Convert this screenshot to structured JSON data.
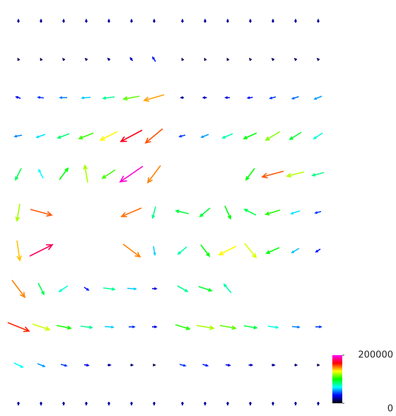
{
  "chart_data": {
    "type": "quiver",
    "colorbar": {
      "lim": [
        0,
        200000
      ],
      "ticks": [
        0,
        200000
      ],
      "colormap": [
        "#000000",
        "#0000ff",
        "#00ffff",
        "#00ff00",
        "#ffff00",
        "#ff0000",
        "#ff00ff"
      ]
    },
    "panels": [
      {
        "u": [
          [
            0,
            0,
            0,
            0,
            0,
            0,
            0
          ],
          [
            -5000,
            -5000,
            -8000,
            -10000,
            -12000,
            -15000,
            -20000
          ],
          [
            -30000,
            -40000,
            -50000,
            -60000,
            -80000,
            -110000,
            -140000
          ],
          [
            -50000,
            -60000,
            -80000,
            -100000,
            -120000,
            -150000,
            -120000
          ],
          [
            -40000,
            -30000,
            60000,
            -20000,
            -90000,
            -160000,
            -90000
          ],
          [
            -20000,
            150000,
            null,
            null,
            null,
            -140000,
            -20000
          ],
          [
            20000,
            160000,
            null,
            null,
            null,
            120000,
            10000
          ],
          [
            90000,
            40000,
            -60000,
            30000,
            80000,
            60000,
            30000
          ],
          [
            150000,
            120000,
            100000,
            80000,
            60000,
            40000,
            30000
          ],
          [
            60000,
            50000,
            40000,
            30000,
            20000,
            15000,
            10000
          ],
          [
            0,
            0,
            0,
            0,
            0,
            0,
            0
          ]
        ],
        "v": [
          [
            20000,
            20000,
            20000,
            20000,
            20000,
            20000,
            20000
          ],
          [
            10000,
            10000,
            10000,
            10000,
            12000,
            20000,
            30000
          ],
          [
            10000,
            5000,
            0,
            -5000,
            -10000,
            -20000,
            -40000
          ],
          [
            -10000,
            -20000,
            -30000,
            -40000,
            -60000,
            -80000,
            -100000
          ],
          [
            -80000,
            60000,
            80000,
            120000,
            -60000,
            -110000,
            -120000
          ],
          [
            -120000,
            -40000,
            null,
            null,
            null,
            -60000,
            -80000
          ],
          [
            -140000,
            80000,
            null,
            null,
            null,
            -90000,
            -60000
          ],
          [
            -120000,
            -80000,
            -40000,
            -20000,
            -10000,
            -5000,
            0
          ],
          [
            -60000,
            -40000,
            -20000,
            -10000,
            -5000,
            0,
            0
          ],
          [
            -30000,
            -20000,
            -10000,
            -5000,
            0,
            0,
            0
          ],
          [
            -20000,
            -20000,
            -20000,
            -20000,
            -20000,
            -20000,
            -20000
          ]
        ]
      },
      {
        "u": [
          [
            0,
            0,
            0,
            0,
            0,
            0,
            0
          ],
          [
            -5000,
            -5000,
            -5000,
            -8000,
            -10000,
            -10000,
            -10000
          ],
          [
            -20000,
            -25000,
            -30000,
            -35000,
            -40000,
            -45000,
            -50000
          ],
          [
            -40000,
            -50000,
            -70000,
            -90000,
            -100000,
            -80000,
            -60000
          ],
          [
            null,
            null,
            null,
            -60000,
            -150000,
            -120000,
            -80000
          ],
          [
            -90000,
            -70000,
            40000,
            -80000,
            -100000,
            -60000,
            -40000
          ],
          [
            -60000,
            60000,
            -120000,
            80000,
            -90000,
            -50000,
            -30000
          ],
          [
            70000,
            90000,
            -50000,
            null,
            null,
            null,
            null
          ],
          [
            100000,
            120000,
            110000,
            90000,
            70000,
            50000,
            40000
          ],
          [
            40000,
            35000,
            30000,
            25000,
            20000,
            15000,
            10000
          ],
          [
            0,
            0,
            0,
            0,
            0,
            0,
            0
          ]
        ],
        "v": [
          [
            20000,
            20000,
            20000,
            20000,
            20000,
            20000,
            20000
          ],
          [
            10000,
            10000,
            10000,
            10000,
            10000,
            10000,
            10000
          ],
          [
            0,
            0,
            0,
            -5000,
            -10000,
            -15000,
            -20000
          ],
          [
            -10000,
            -20000,
            -30000,
            -40000,
            -60000,
            -50000,
            -40000
          ],
          [
            null,
            null,
            null,
            -80000,
            -40000,
            -30000,
            -20000
          ],
          [
            20000,
            -60000,
            -90000,
            40000,
            -30000,
            -20000,
            -10000
          ],
          [
            -50000,
            -80000,
            -60000,
            -100000,
            -40000,
            -30000,
            -20000
          ],
          [
            -40000,
            -30000,
            60000,
            null,
            null,
            null,
            null
          ],
          [
            -30000,
            -20000,
            -20000,
            -15000,
            -10000,
            -5000,
            0
          ],
          [
            -10000,
            -10000,
            -5000,
            0,
            0,
            0,
            0
          ],
          [
            -20000,
            -20000,
            -20000,
            -20000,
            -20000,
            -20000,
            -20000
          ]
        ]
      }
    ]
  }
}
